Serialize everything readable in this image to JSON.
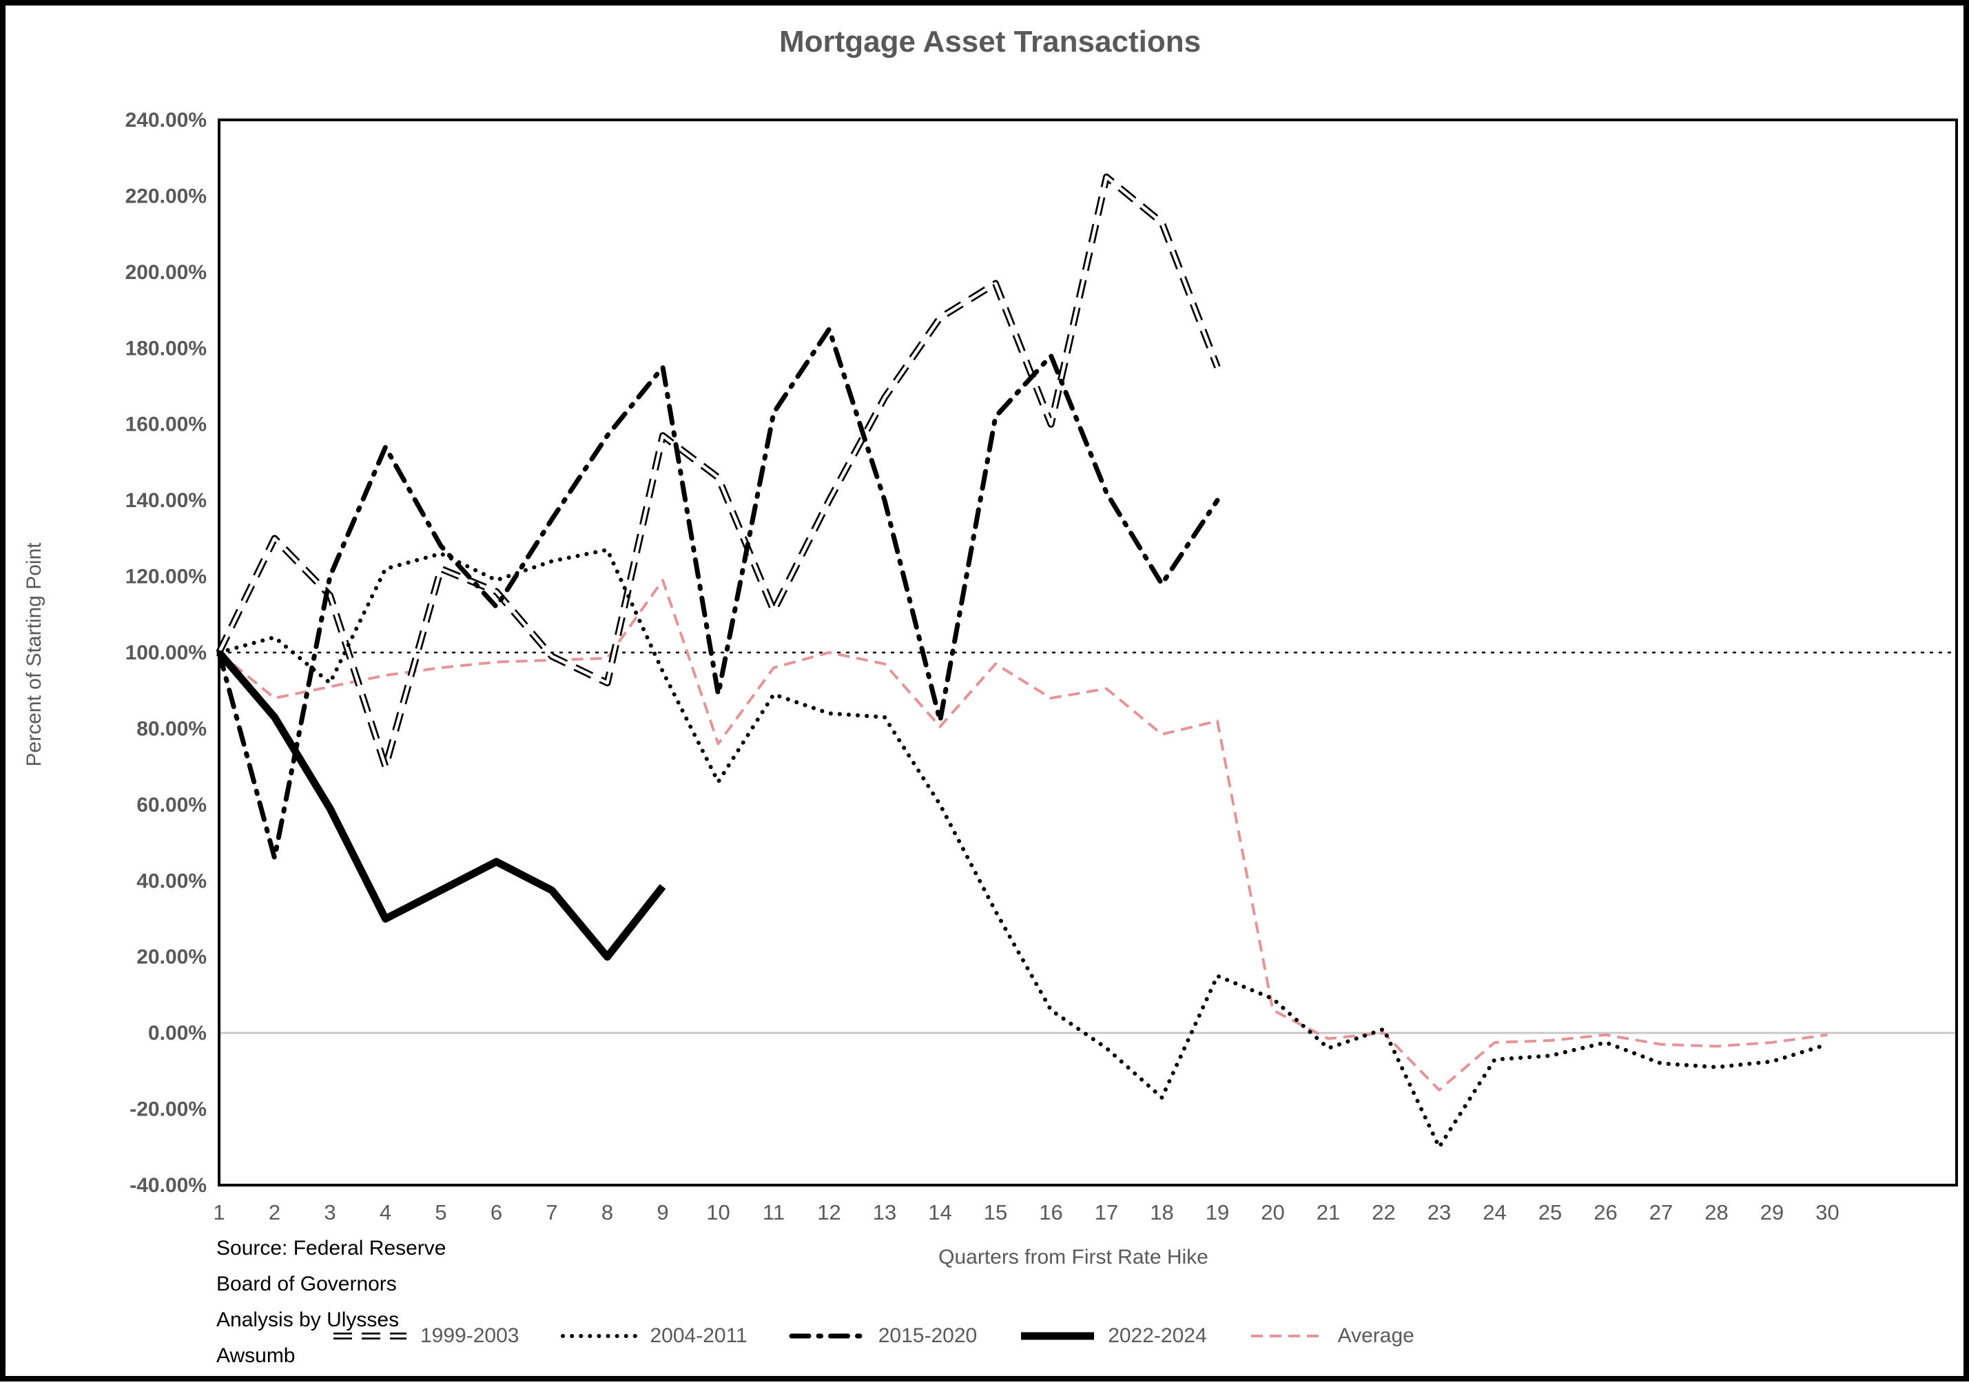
{
  "title": "Mortgage Asset Transactions",
  "y_axis": {
    "title": "Percent of Starting Point",
    "min": -40,
    "max": 240,
    "step": 20,
    "tick_values": [
      240,
      220,
      200,
      180,
      160,
      140,
      120,
      100,
      80,
      60,
      40,
      20,
      0,
      -20,
      -40
    ],
    "tick_labels": [
      "240.00%",
      "220.00%",
      "200.00%",
      "180.00%",
      "160.00%",
      "140.00%",
      "120.00%",
      "100.00%",
      "80.00%",
      "60.00%",
      "40.00%",
      "20.00%",
      "0.00%",
      "-20.00%",
      "-40.00%"
    ]
  },
  "x_axis": {
    "title": "Quarters from First Rate Hike",
    "tick_labels": [
      "1",
      "2",
      "3",
      "4",
      "5",
      "6",
      "7",
      "8",
      "9",
      "10",
      "11",
      "12",
      "13",
      "14",
      "15",
      "16",
      "17",
      "18",
      "19",
      "20",
      "21",
      "22",
      "23",
      "24",
      "25",
      "26",
      "27",
      "28",
      "29",
      "30"
    ]
  },
  "reference_lines": [
    {
      "value": 100,
      "style": "dotted-black",
      "color": "#000000"
    },
    {
      "value": 0,
      "style": "solid-gray",
      "color": "#c9c9c9"
    }
  ],
  "source_lines": [
    "Source: Federal Reserve",
    "Board of Governors",
    "Analysis by Ulysses",
    "Awsumb"
  ],
  "colors": {
    "line_black": "#000000",
    "average_pink": "#e59598",
    "text_gray": "#595959",
    "zero_line_gray": "#c9c9c9",
    "background": "#ffffff"
  },
  "legend": [
    {
      "label": "1999-2003",
      "style": "hollow-dash",
      "color": "#000000"
    },
    {
      "label": "2004-2011",
      "style": "dotted",
      "color": "#000000"
    },
    {
      "label": "2015-2020",
      "style": "dash-dot",
      "color": "#000000"
    },
    {
      "label": "2022-2024",
      "style": "solid-thick",
      "color": "#000000"
    },
    {
      "label": "Average",
      "style": "pink-dash",
      "color": "#e59598"
    }
  ],
  "chart_data": {
    "type": "line",
    "title": "Mortgage Asset Transactions",
    "xlabel": "Quarters from First Rate Hike",
    "ylabel": "Percent of Starting Point",
    "x": [
      1,
      2,
      3,
      4,
      5,
      6,
      7,
      8,
      9,
      10,
      11,
      12,
      13,
      14,
      15,
      16,
      17,
      18,
      19,
      20,
      21,
      22,
      23,
      24,
      25,
      26,
      27,
      28,
      29,
      30
    ],
    "xlim": [
      1,
      30
    ],
    "ylim": [
      -40,
      240
    ],
    "grid": false,
    "legend_position": "bottom",
    "series": [
      {
        "name": "1999-2003",
        "style": "hollow-dash",
        "color": "#000000",
        "values": [
          100,
          130,
          115,
          70,
          122,
          116,
          99,
          92,
          157,
          146,
          111,
          140,
          167,
          188,
          197,
          160,
          225,
          213,
          175
        ]
      },
      {
        "name": "2004-2011",
        "style": "dotted",
        "color": "#000000",
        "values": [
          100,
          104,
          92,
          122,
          126,
          119,
          124,
          127,
          95,
          66,
          89,
          84,
          83,
          60,
          32,
          6,
          -4,
          -17,
          15,
          9,
          -4,
          1,
          -30,
          -7,
          -6,
          -2.5,
          -8,
          -9,
          -7.5,
          -3
        ]
      },
      {
        "name": "2015-2020",
        "style": "dash-dot",
        "color": "#000000",
        "values": [
          100,
          46,
          120,
          154,
          128,
          112,
          135,
          157,
          175,
          89,
          163,
          185,
          140,
          82,
          162,
          178,
          142,
          118,
          140
        ]
      },
      {
        "name": "2022-2024",
        "style": "solid-thick",
        "color": "#000000",
        "values": [
          100,
          83,
          59,
          30,
          37.5,
          45,
          37.5,
          20,
          38.5
        ]
      },
      {
        "name": "Average",
        "style": "pink-dash",
        "color": "#e59598",
        "values": [
          100,
          88,
          91,
          94,
          96,
          97.5,
          98,
          98.5,
          119,
          76,
          96,
          100,
          97,
          80.5,
          97,
          88,
          90.5,
          78.5,
          82,
          6,
          -1.5,
          0,
          -15,
          -2.5,
          -2,
          -0.5,
          -3,
          -3.5,
          -2.5,
          -0.5
        ]
      }
    ]
  }
}
